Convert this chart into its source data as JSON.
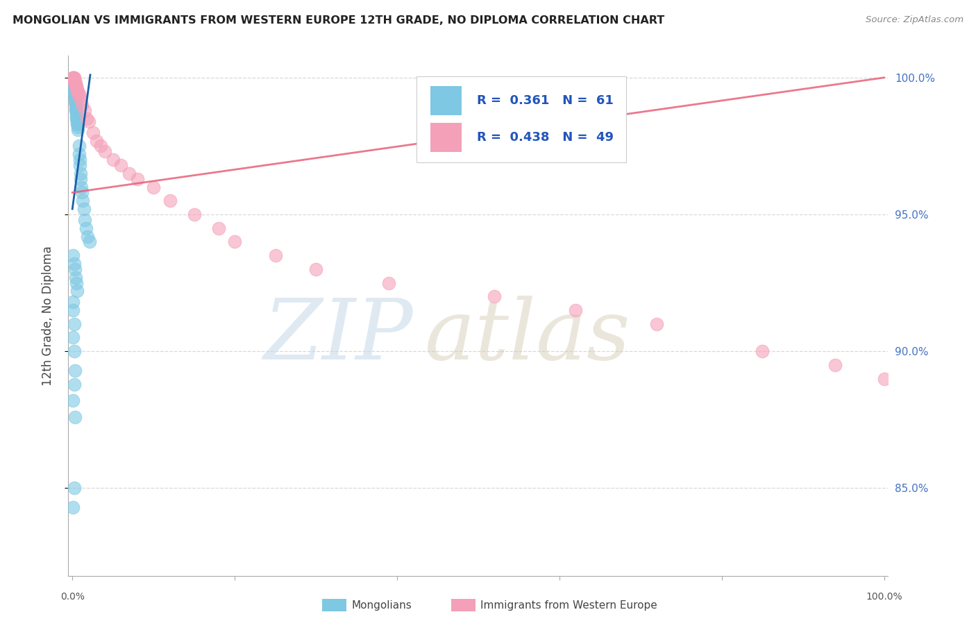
{
  "title": "MONGOLIAN VS IMMIGRANTS FROM WESTERN EUROPE 12TH GRADE, NO DIPLOMA CORRELATION CHART",
  "source": "Source: ZipAtlas.com",
  "ylabel": "12th Grade, No Diploma",
  "legend_r1": "R =  0.361",
  "legend_n1": "N =  61",
  "legend_r2": "R =  0.438",
  "legend_n2": "N =  49",
  "blue_color": "#7ec8e3",
  "pink_color": "#f4a0b8",
  "blue_line_color": "#1a5fa8",
  "pink_line_color": "#e8607a",
  "right_tick_color": "#4472c4",
  "grid_color": "#d8d8d8",
  "ylim_low": 0.818,
  "ylim_high": 1.008,
  "xlim_low": -0.005,
  "xlim_high": 1.005,
  "yticks": [
    0.85,
    0.9,
    0.95,
    1.0
  ],
  "ytick_labels": [
    "85.0%",
    "90.0%",
    "95.0%",
    "100.0%"
  ],
  "blue_x": [
    0.001,
    0.001,
    0.001,
    0.001,
    0.001,
    0.001,
    0.002,
    0.002,
    0.002,
    0.002,
    0.002,
    0.003,
    0.003,
    0.003,
    0.003,
    0.003,
    0.004,
    0.004,
    0.004,
    0.004,
    0.005,
    0.005,
    0.005,
    0.005,
    0.006,
    0.006,
    0.006,
    0.007,
    0.007,
    0.007,
    0.008,
    0.008,
    0.009,
    0.009,
    0.01,
    0.01,
    0.011,
    0.012,
    0.013,
    0.014,
    0.015,
    0.017,
    0.019,
    0.021,
    0.001,
    0.002,
    0.003,
    0.004,
    0.005,
    0.006,
    0.001,
    0.001,
    0.002,
    0.001,
    0.002,
    0.003,
    0.002,
    0.001,
    0.003,
    0.002,
    0.001
  ],
  "blue_y": [
    1.0,
    0.999,
    0.998,
    0.998,
    0.997,
    0.997,
    0.997,
    0.996,
    0.996,
    0.995,
    0.994,
    0.994,
    0.993,
    0.993,
    0.992,
    0.991,
    0.991,
    0.99,
    0.989,
    0.988,
    0.988,
    0.987,
    0.986,
    0.985,
    0.985,
    0.984,
    0.983,
    0.983,
    0.982,
    0.981,
    0.975,
    0.972,
    0.97,
    0.968,
    0.965,
    0.963,
    0.96,
    0.958,
    0.955,
    0.952,
    0.948,
    0.945,
    0.942,
    0.94,
    0.935,
    0.932,
    0.93,
    0.927,
    0.925,
    0.922,
    0.918,
    0.915,
    0.91,
    0.905,
    0.9,
    0.893,
    0.888,
    0.882,
    0.876,
    0.85,
    0.843
  ],
  "pink_x": [
    0.001,
    0.001,
    0.001,
    0.001,
    0.002,
    0.002,
    0.002,
    0.002,
    0.003,
    0.003,
    0.003,
    0.004,
    0.004,
    0.004,
    0.005,
    0.005,
    0.006,
    0.006,
    0.007,
    0.007,
    0.008,
    0.009,
    0.01,
    0.012,
    0.015,
    0.018,
    0.02,
    0.025,
    0.03,
    0.035,
    0.04,
    0.05,
    0.06,
    0.07,
    0.08,
    0.1,
    0.12,
    0.15,
    0.18,
    0.2,
    0.25,
    0.3,
    0.39,
    0.52,
    0.62,
    0.72,
    0.85,
    0.94,
    1.0
  ],
  "pink_y": [
    1.0,
    1.0,
    1.0,
    0.999,
    1.0,
    1.0,
    0.999,
    0.999,
    0.999,
    0.998,
    0.998,
    0.998,
    0.997,
    0.997,
    0.997,
    0.996,
    0.996,
    0.995,
    0.995,
    0.994,
    0.994,
    0.993,
    0.992,
    0.99,
    0.988,
    0.985,
    0.984,
    0.98,
    0.977,
    0.975,
    0.973,
    0.97,
    0.968,
    0.965,
    0.963,
    0.96,
    0.955,
    0.95,
    0.945,
    0.94,
    0.935,
    0.93,
    0.925,
    0.92,
    0.915,
    0.91,
    0.9,
    0.895,
    0.89
  ],
  "blue_trend_x": [
    0.0,
    0.022
  ],
  "blue_trend_y": [
    0.952,
    1.001
  ],
  "pink_trend_x": [
    0.0,
    1.0
  ],
  "pink_trend_y": [
    0.958,
    1.0
  ]
}
